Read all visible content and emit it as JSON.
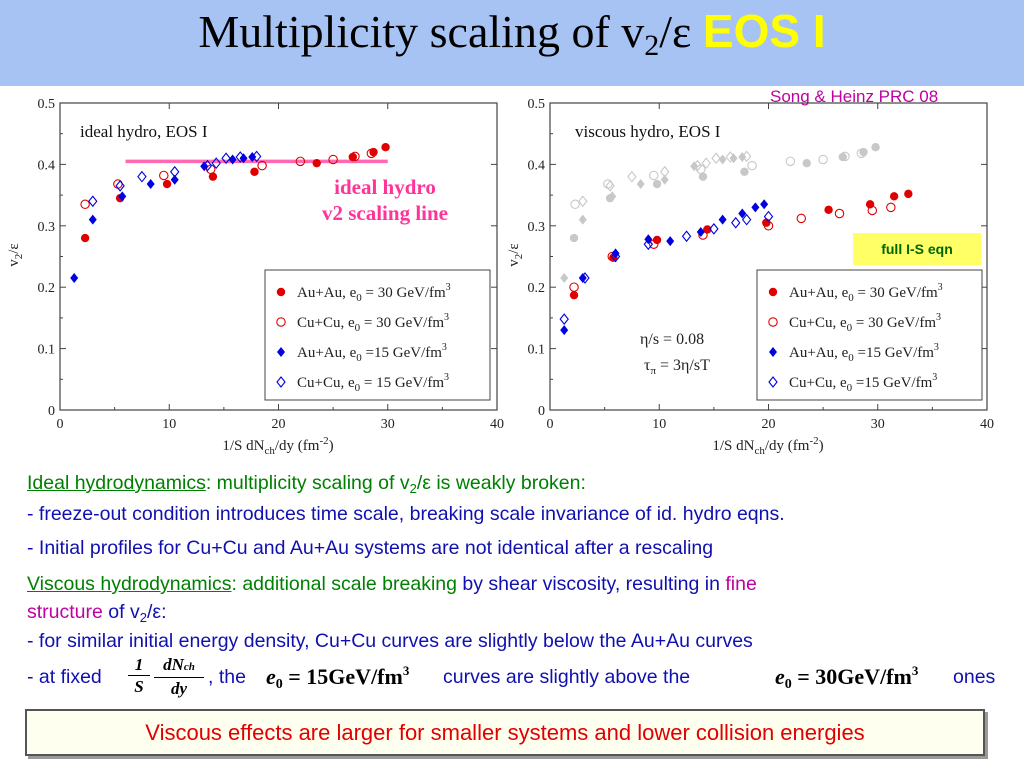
{
  "slide": {
    "title": {
      "prefix": "Multiplicity scaling of v",
      "sub": "2",
      "suffix": "/ε",
      "eos": "EOS I"
    },
    "reference": "Song & Heinz PRC 08",
    "full_is_label": "full I-S eqn",
    "ideal_line_label": [
      "ideal hydro",
      "v2 scaling line"
    ],
    "text": {
      "ideal_heading": "Ideal hydrodynamics",
      "ideal_rest_a": ":  multiplicity scaling of v",
      "ideal_rest_sub": "2",
      "ideal_rest_b": "/ε is weakly broken:",
      "bullet1": "- freeze-out condition introduces time scale, breaking scale invariance of id. hydro eqns.",
      "bullet2": "- Initial profiles for Cu+Cu and Au+Au systems are not identical after a rescaling",
      "viscous_heading": "Viscous hydrodynamics",
      "viscous_rest_a": ":  additional scale breaking",
      "viscous_rest_b": " by shear viscosity, resulting in ",
      "viscous_fine": "fine",
      "viscous_structure": "structure",
      "viscous_rest_c": " of v",
      "viscous_rest_sub": "2",
      "viscous_rest_d": "/ε:",
      "bullet3": "- for similar initial energy density, Cu+Cu curves are slightly below the Au+Au curves",
      "bullet4_a": "- at fixed",
      "bullet4_b": ", the",
      "bullet4_c": "curves are slightly above the",
      "bullet4_d": "ones",
      "frac_num_1": "1",
      "frac_den_1": "S",
      "frac_num_2": "dN",
      "frac_num_2_sub": "ch",
      "frac_den_2": "dy",
      "eq1": {
        "e": "e",
        "sub": "0",
        "val": " = 15GeV/fm",
        "sup": "3"
      },
      "eq2": {
        "e": "e",
        "sub": "0",
        "val": " = 30GeV/fm",
        "sup": "3"
      },
      "conclusion": "Viscous effects are larger for smaller systems and lower collision energies"
    }
  },
  "chart_data": [
    {
      "type": "scatter",
      "title": "ideal hydro, EOS I",
      "xlabel": "1/S dN",
      "xlabel_sub": "ch",
      "xlabel_tail": "/dy (fm",
      "xlabel_sup": "-2",
      "xlabel_end": ")",
      "ylabel": "v",
      "ylabel_sub": "2",
      "ylabel_tail": "/ε",
      "xlim": [
        0,
        40
      ],
      "ylim": [
        0,
        0.5
      ],
      "xticks": [
        "0",
        "10",
        "20",
        "30",
        "40"
      ],
      "yticks": [
        "0",
        "0.1",
        "0.2",
        "0.3",
        "0.4",
        "0.5"
      ],
      "reference_line": {
        "x": [
          6,
          30
        ],
        "y": 0.405,
        "color": "#ff69b4"
      },
      "legend": {
        "placement": "bottom-right",
        "entries": [
          {
            "a": "Au+Au, e",
            "sub": "0",
            "b": " = 30 GeV/fm",
            "sup": "3"
          },
          {
            "a": "Cu+Cu, e",
            "sub": "0",
            "b": " = 30 GeV/fm",
            "sup": "3"
          },
          {
            "a": "Au+Au, e",
            "sub": "0",
            "b": " =15 GeV/fm",
            "sup": "3"
          },
          {
            "a": "Cu+Cu, e",
            "sub": "0",
            "b": " = 15 GeV/fm",
            "sup": "3"
          }
        ]
      },
      "series": [
        {
          "marker": "filled-circle",
          "color": "#e00000",
          "x": [
            2.3,
            5.5,
            9.8,
            14.0,
            17.8,
            23.5,
            26.8,
            28.7,
            29.8
          ],
          "y": [
            0.28,
            0.345,
            0.368,
            0.38,
            0.388,
            0.402,
            0.412,
            0.42,
            0.428
          ]
        },
        {
          "marker": "open-circle",
          "color": "#e00000",
          "x": [
            2.3,
            5.3,
            9.5,
            13.8,
            18.5,
            22.0,
            25.0,
            27.0,
            28.5
          ],
          "y": [
            0.335,
            0.368,
            0.382,
            0.392,
            0.398,
            0.405,
            0.408,
            0.413,
            0.418
          ]
        },
        {
          "marker": "filled-diamond",
          "color": "#0000e0",
          "x": [
            1.3,
            3.0,
            5.7,
            8.3,
            10.5,
            13.2,
            15.8,
            16.8,
            17.6
          ],
          "y": [
            0.215,
            0.31,
            0.348,
            0.368,
            0.375,
            0.397,
            0.408,
            0.41,
            0.412
          ]
        },
        {
          "marker": "open-diamond",
          "color": "#0000e0",
          "x": [
            3.0,
            5.5,
            7.5,
            10.5,
            13.5,
            14.3,
            15.2,
            16.5,
            18.0
          ],
          "y": [
            0.34,
            0.365,
            0.38,
            0.388,
            0.398,
            0.402,
            0.41,
            0.412,
            0.413
          ]
        }
      ]
    },
    {
      "type": "scatter",
      "title": "viscous hydro, EOS I",
      "xlabel": "1/S dN",
      "xlabel_sub": "ch",
      "xlabel_tail": "/dy (fm",
      "xlabel_sup": "-2",
      "xlabel_end": ")",
      "ylabel": "v",
      "ylabel_sub": "2",
      "ylabel_tail": "/ε",
      "xlim": [
        0,
        40
      ],
      "ylim": [
        0,
        0.5
      ],
      "xticks": [
        "0",
        "10",
        "20",
        "30",
        "40"
      ],
      "yticks": [
        "0",
        "0.1",
        "0.2",
        "0.3",
        "0.4",
        "0.5"
      ],
      "annotation": {
        "line1": "η/s = 0.08",
        "line2_a": "τ",
        "line2_sub": "π",
        "line2_b": " = 3η/sT"
      },
      "legend": {
        "placement": "bottom-right",
        "entries": [
          {
            "a": "Au+Au, e",
            "sub": "0",
            "b": " = 30 GeV/fm",
            "sup": "3"
          },
          {
            "a": "Cu+Cu, e",
            "sub": "0",
            "b": " = 30 GeV/fm",
            "sup": "3"
          },
          {
            "a": "Au+Au, e",
            "sub": "0",
            "b": " =15 GeV/fm",
            "sup": "3"
          },
          {
            "a": "Cu+Cu, e",
            "sub": "0",
            "b": " =15 GeV/fm",
            "sup": "3"
          }
        ]
      },
      "series": [
        {
          "marker": "filled-circle",
          "color": "#e00000",
          "x": [
            2.2,
            5.8,
            9.8,
            14.4,
            19.8,
            25.5,
            29.3,
            31.5,
            32.8
          ],
          "y": [
            0.187,
            0.248,
            0.277,
            0.294,
            0.305,
            0.326,
            0.335,
            0.348,
            0.352
          ]
        },
        {
          "marker": "open-circle",
          "color": "#e00000",
          "x": [
            2.2,
            5.7,
            9.5,
            14.0,
            20.0,
            23.0,
            26.5,
            29.5,
            31.2
          ],
          "y": [
            0.2,
            0.25,
            0.27,
            0.285,
            0.3,
            0.312,
            0.32,
            0.325,
            0.33
          ]
        },
        {
          "marker": "filled-diamond",
          "color": "#0000e0",
          "x": [
            1.3,
            3.0,
            6.0,
            9.0,
            11.0,
            13.8,
            15.8,
            17.6,
            18.8,
            19.6
          ],
          "y": [
            0.13,
            0.215,
            0.255,
            0.278,
            0.275,
            0.29,
            0.31,
            0.32,
            0.33,
            0.335
          ]
        },
        {
          "marker": "open-diamond",
          "color": "#0000e0",
          "x": [
            1.3,
            3.2,
            6.0,
            9.0,
            12.5,
            15.0,
            17.0,
            18.0,
            20.0
          ],
          "y": [
            0.148,
            0.215,
            0.25,
            0.27,
            0.283,
            0.295,
            0.305,
            0.31,
            0.315
          ]
        },
        {
          "marker": "filled-circle",
          "color": "#c8c8c8",
          "x": [
            2.2,
            5.5,
            9.8,
            14.0,
            17.8,
            23.5,
            26.8,
            28.7,
            29.8
          ],
          "y": [
            0.28,
            0.345,
            0.368,
            0.38,
            0.388,
            0.402,
            0.412,
            0.42,
            0.428
          ]
        },
        {
          "marker": "open-circle",
          "color": "#c8c8c8",
          "x": [
            2.3,
            5.3,
            9.5,
            13.8,
            18.5,
            22.0,
            25.0,
            27.0,
            28.5
          ],
          "y": [
            0.335,
            0.368,
            0.382,
            0.392,
            0.398,
            0.405,
            0.408,
            0.413,
            0.418
          ]
        },
        {
          "marker": "filled-diamond",
          "color": "#c8c8c8",
          "x": [
            1.3,
            3.0,
            5.7,
            8.3,
            10.5,
            13.2,
            15.8,
            16.8,
            17.6
          ],
          "y": [
            0.215,
            0.31,
            0.348,
            0.368,
            0.375,
            0.397,
            0.408,
            0.41,
            0.412
          ]
        },
        {
          "marker": "open-diamond",
          "color": "#c8c8c8",
          "x": [
            3.0,
            5.5,
            7.5,
            10.5,
            13.5,
            14.3,
            15.2,
            16.5,
            18.0
          ],
          "y": [
            0.34,
            0.365,
            0.38,
            0.388,
            0.398,
            0.402,
            0.41,
            0.412,
            0.413
          ]
        }
      ]
    }
  ]
}
